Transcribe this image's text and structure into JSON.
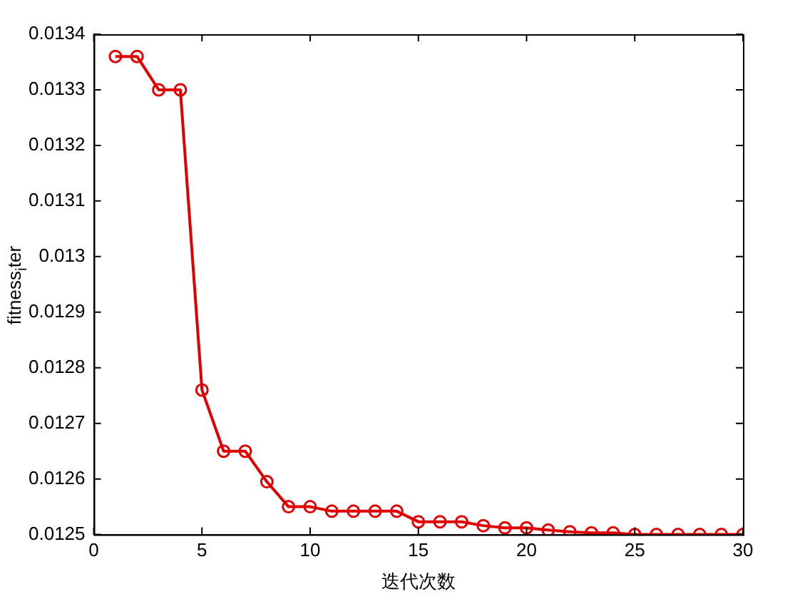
{
  "chart_data": {
    "type": "line",
    "xlabel": "迭代次数",
    "ylabel": "fitness$_{i}$ter",
    "x": [
      1,
      2,
      3,
      4,
      5,
      6,
      7,
      8,
      9,
      10,
      11,
      12,
      13,
      14,
      15,
      16,
      17,
      18,
      19,
      20,
      21,
      22,
      23,
      24,
      25,
      26,
      27,
      28,
      29,
      30
    ],
    "series": [
      {
        "color": "#e00000",
        "values": [
          0.01336,
          0.01336,
          0.0133,
          0.0133,
          0.01276,
          0.01265,
          0.01265,
          0.012595,
          0.01255,
          0.01255,
          0.012542,
          0.012542,
          0.012542,
          0.012542,
          0.012523,
          0.012523,
          0.012523,
          0.012516,
          0.012512,
          0.012512,
          0.012508,
          0.012505,
          0.012503,
          0.012503,
          0.0125,
          0.0125,
          0.0125,
          0.0125,
          0.0125,
          0.0125
        ]
      }
    ],
    "xlim": [
      0,
      30
    ],
    "xticks": [
      0,
      5,
      10,
      15,
      20,
      25,
      30
    ],
    "ylim": [
      0.0125,
      0.0134
    ],
    "yticks": [
      0.0125,
      0.0126,
      0.0127,
      0.0128,
      0.0129,
      0.013,
      0.0131,
      0.0132,
      0.0133,
      0.0134
    ],
    "grid": false,
    "legend": false,
    "marker": "circle",
    "line_style": "solid"
  }
}
